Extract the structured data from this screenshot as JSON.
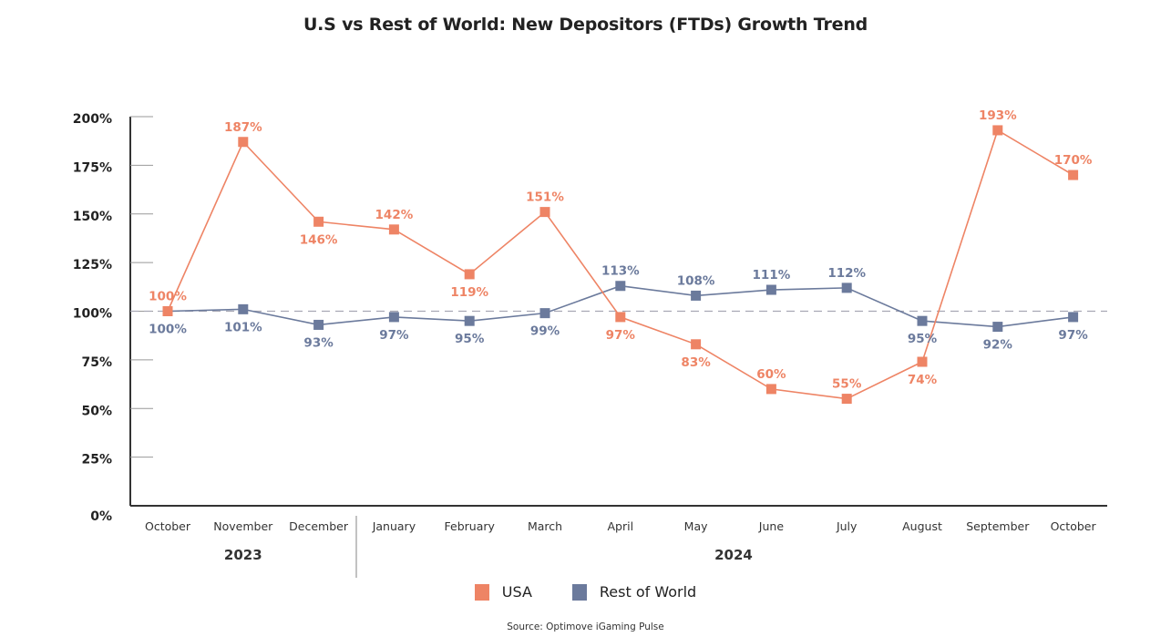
{
  "chart_data": {
    "type": "line",
    "title": "U.S vs Rest of World: New Depositors (FTDs) Growth Trend",
    "xlabel": "",
    "ylabel": "",
    "ylim": [
      0,
      200
    ],
    "yticks": [
      0,
      25,
      50,
      75,
      100,
      125,
      150,
      175,
      200
    ],
    "ytick_labels": [
      "0%",
      "25%",
      "50%",
      "75%",
      "100%",
      "125%",
      "150%",
      "175%",
      "200%"
    ],
    "categories": [
      "October",
      "November",
      "December",
      "January",
      "February",
      "March",
      "April",
      "May",
      "June",
      "July",
      "August",
      "September",
      "October"
    ],
    "year_groups": [
      {
        "label": "2023",
        "start": 0,
        "end": 2
      },
      {
        "label": "2024",
        "start": 3,
        "end": 12
      }
    ],
    "reference_line": {
      "value": 100,
      "style": "dashed"
    },
    "series": [
      {
        "name": "USA",
        "color": "#EE8465",
        "values": [
          100,
          187,
          146,
          142,
          119,
          151,
          97,
          83,
          60,
          55,
          74,
          193,
          170
        ],
        "labels": [
          "100%",
          "187%",
          "146%",
          "142%",
          "119%",
          "151%",
          "97%",
          "83%",
          "60%",
          "55%",
          "74%",
          "193%",
          "170%"
        ],
        "label_pos": [
          "above",
          "above",
          "below",
          "above",
          "below",
          "above",
          "below",
          "below",
          "above",
          "above",
          "below",
          "above",
          "above"
        ]
      },
      {
        "name": "Rest of World",
        "color": "#6B7A9C",
        "values": [
          100,
          101,
          93,
          97,
          95,
          99,
          113,
          108,
          111,
          112,
          95,
          92,
          97
        ],
        "labels": [
          "100%",
          "101%",
          "93%",
          "97%",
          "95%",
          "99%",
          "113%",
          "108%",
          "111%",
          "112%",
          "95%",
          "92%",
          "97%"
        ],
        "label_pos": [
          "below",
          "below",
          "below",
          "below",
          "below",
          "below",
          "above",
          "above",
          "above",
          "above",
          "below",
          "below",
          "below"
        ]
      }
    ],
    "legend": {
      "position": "bottom-center",
      "entries": [
        "USA",
        "Rest of World"
      ]
    },
    "grid": false,
    "source": "Source: Optimove iGaming Pulse"
  }
}
